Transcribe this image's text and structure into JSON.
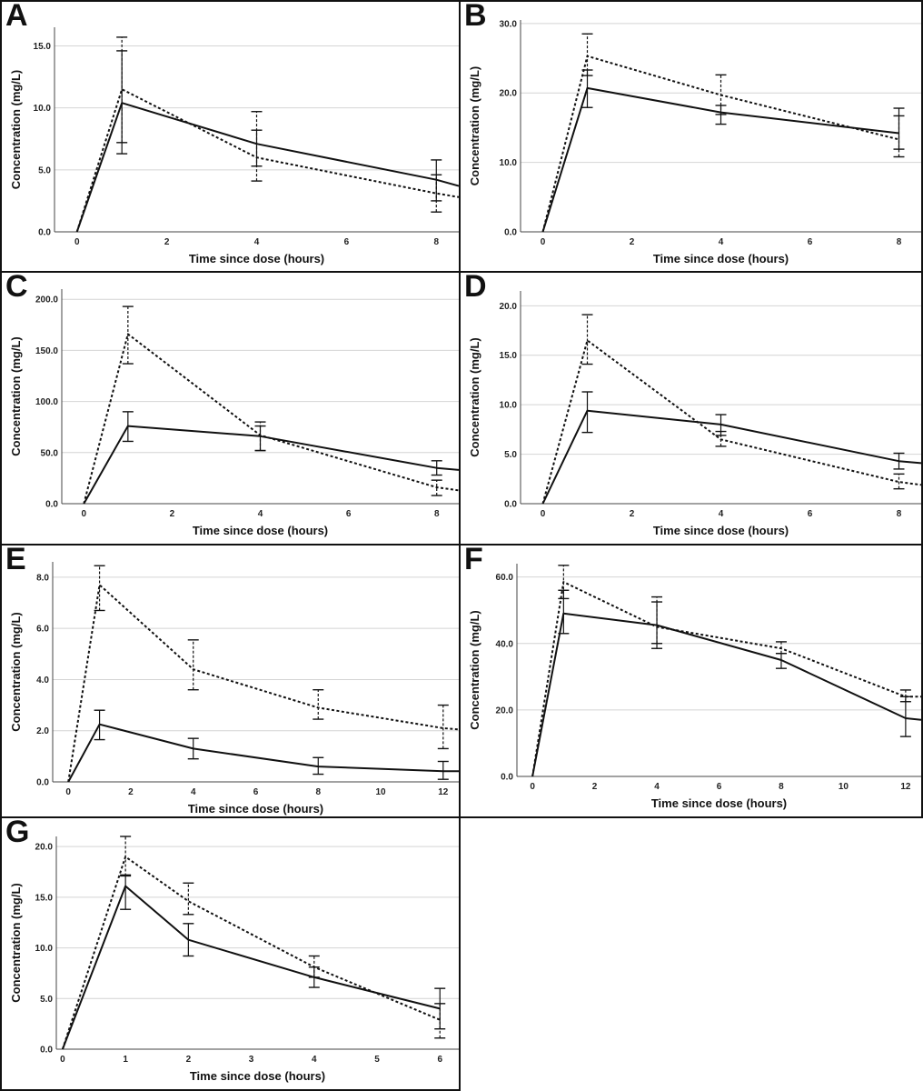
{
  "figure": {
    "legend_solid": "",
    "legend_dashed": ""
  },
  "chart_data": [
    {
      "panel": "A",
      "type": "line",
      "xlabel": "Time since dose (hours)",
      "ylabel": "Concentration (mg/L)",
      "xlim": [
        -0.5,
        8.5
      ],
      "ylim": [
        0,
        16.5
      ],
      "xticks": [
        0,
        2,
        4,
        6,
        8
      ],
      "xtick_labels": [
        "0",
        "2",
        "4",
        "6",
        "8"
      ],
      "yticks": [
        0,
        5,
        10,
        15
      ],
      "ytick_labels": [
        "0.0",
        "5.0",
        "10.0",
        "15.0"
      ],
      "series": [
        {
          "name": "solid",
          "style": "solid",
          "x": [
            0,
            1,
            4,
            8,
            8.5
          ],
          "y": [
            0,
            10.4,
            7.1,
            4.2,
            3.7
          ],
          "err_lo": [
            null,
            6.3,
            5.3,
            2.5,
            null
          ],
          "err_hi": [
            null,
            14.6,
            8.2,
            5.8,
            null
          ]
        },
        {
          "name": "dashed",
          "style": "dashed",
          "x": [
            0,
            1,
            4,
            8,
            8.5
          ],
          "y": [
            0,
            11.5,
            6.0,
            3.1,
            2.8
          ],
          "err_lo": [
            null,
            7.2,
            4.1,
            1.6,
            null
          ],
          "err_hi": [
            null,
            15.7,
            9.7,
            4.6,
            null
          ]
        }
      ]
    },
    {
      "panel": "B",
      "type": "line",
      "xlabel": "Time since dose (hours)",
      "ylabel": "Concentration (mg/L)",
      "xlim": [
        -0.5,
        8.5
      ],
      "ylim": [
        0,
        30.5
      ],
      "xticks": [
        0,
        2,
        4,
        6,
        8
      ],
      "xtick_labels": [
        "0",
        "2",
        "4",
        "6",
        "8"
      ],
      "yticks": [
        0,
        10,
        20,
        30
      ],
      "ytick_labels": [
        "0.0",
        "10.0",
        "20.0",
        "30.0"
      ],
      "series": [
        {
          "name": "solid",
          "style": "solid",
          "x": [
            0,
            1,
            4,
            8
          ],
          "y": [
            0,
            20.7,
            17.2,
            14.2
          ],
          "err_lo": [
            null,
            17.9,
            15.5,
            11.9
          ],
          "err_hi": [
            null,
            23.3,
            18.2,
            17.8
          ]
        },
        {
          "name": "dashed",
          "style": "dashed",
          "x": [
            0,
            1,
            4,
            8
          ],
          "y": [
            0,
            25.3,
            19.7,
            13.3
          ],
          "err_lo": [
            null,
            22.5,
            16.9,
            10.8
          ],
          "err_hi": [
            null,
            28.5,
            22.6,
            16.7
          ]
        }
      ]
    },
    {
      "panel": "C",
      "type": "line",
      "xlabel": "Time since dose (hours)",
      "ylabel": "Concentration (mg/L)",
      "xlim": [
        -0.5,
        8.5
      ],
      "ylim": [
        0,
        210
      ],
      "xticks": [
        0,
        2,
        4,
        6,
        8
      ],
      "xtick_labels": [
        "0",
        "2",
        "4",
        "6",
        "8"
      ],
      "yticks": [
        0,
        50,
        100,
        150,
        200
      ],
      "ytick_labels": [
        "0.0",
        "50.0",
        "100.0",
        "150.0",
        "200.0"
      ],
      "series": [
        {
          "name": "solid",
          "style": "solid",
          "x": [
            0,
            1,
            4,
            8,
            8.5
          ],
          "y": [
            0,
            76,
            66,
            35,
            33
          ],
          "err_lo": [
            null,
            61,
            52,
            28,
            null
          ],
          "err_hi": [
            null,
            90,
            76,
            42,
            null
          ]
        },
        {
          "name": "dashed",
          "style": "dashed",
          "x": [
            0,
            1,
            4,
            8,
            8.5
          ],
          "y": [
            0,
            166,
            67,
            16,
            13
          ],
          "err_lo": [
            null,
            137,
            52,
            8,
            null
          ],
          "err_hi": [
            null,
            193,
            80,
            23,
            null
          ]
        }
      ]
    },
    {
      "panel": "D",
      "type": "line",
      "xlabel": "Time since dose (hours)",
      "ylabel": "Concentration (mg/L)",
      "xlim": [
        -0.5,
        8.5
      ],
      "ylim": [
        0,
        21.5
      ],
      "xticks": [
        0,
        2,
        4,
        6,
        8
      ],
      "xtick_labels": [
        "0",
        "2",
        "4",
        "6",
        "8"
      ],
      "yticks": [
        0,
        5,
        10,
        15,
        20
      ],
      "ytick_labels": [
        "0.0",
        "5.0",
        "10.0",
        "15.0",
        "20.0"
      ],
      "series": [
        {
          "name": "solid",
          "style": "solid",
          "x": [
            0,
            1,
            4,
            8,
            8.5
          ],
          "y": [
            0,
            9.4,
            8.0,
            4.3,
            4.1
          ],
          "err_lo": [
            null,
            7.2,
            6.9,
            3.5,
            null
          ],
          "err_hi": [
            null,
            11.3,
            9.0,
            5.1,
            null
          ]
        },
        {
          "name": "dashed",
          "style": "dashed",
          "x": [
            0,
            1,
            4,
            8,
            8.5
          ],
          "y": [
            0,
            16.5,
            6.5,
            2.2,
            1.9
          ],
          "err_lo": [
            null,
            14.1,
            5.8,
            1.5,
            null
          ],
          "err_hi": [
            null,
            19.1,
            7.3,
            3.0,
            null
          ]
        }
      ]
    },
    {
      "panel": "E",
      "type": "line",
      "xlabel": "Time since dose (hours)",
      "ylabel": "Concentration (mg/L)",
      "xlim": [
        -0.5,
        12.5
      ],
      "ylim": [
        0,
        8.6
      ],
      "xticks": [
        0,
        2,
        4,
        6,
        8,
        10,
        12
      ],
      "xtick_labels": [
        "0",
        "2",
        "4",
        "6",
        "8",
        "10",
        "12"
      ],
      "yticks": [
        0,
        2,
        4,
        6,
        8
      ],
      "ytick_labels": [
        "0.0",
        "2.0",
        "4.0",
        "6.0",
        "8.0"
      ],
      "series": [
        {
          "name": "solid",
          "style": "solid",
          "x": [
            0,
            1,
            4,
            8,
            12,
            12.5
          ],
          "y": [
            0,
            2.25,
            1.3,
            0.6,
            0.42,
            0.42
          ],
          "err_lo": [
            null,
            1.65,
            0.9,
            0.3,
            0.1,
            null
          ],
          "err_hi": [
            null,
            2.8,
            1.7,
            0.95,
            0.8,
            null
          ]
        },
        {
          "name": "dashed",
          "style": "dashed",
          "x": [
            0,
            1,
            4,
            8,
            12,
            12.5
          ],
          "y": [
            0,
            7.7,
            4.4,
            2.9,
            2.1,
            2.05
          ],
          "err_lo": [
            null,
            6.7,
            3.6,
            2.45,
            1.3,
            null
          ],
          "err_hi": [
            null,
            8.45,
            5.55,
            3.6,
            3.0,
            null
          ]
        }
      ]
    },
    {
      "panel": "F",
      "type": "line",
      "xlabel": "Time since dose (hours)",
      "ylabel": "Concentration (mg/L)",
      "xlim": [
        -0.5,
        12.5
      ],
      "ylim": [
        0,
        64
      ],
      "xticks": [
        0,
        2,
        4,
        6,
        8,
        10,
        12
      ],
      "xtick_labels": [
        "0",
        "2",
        "4",
        "6",
        "8",
        "10",
        "12"
      ],
      "yticks": [
        0,
        20,
        40,
        60
      ],
      "ytick_labels": [
        "0.0",
        "20.0",
        "40.0",
        "60.0"
      ],
      "series": [
        {
          "name": "solid",
          "style": "solid",
          "x": [
            0,
            1,
            4,
            8,
            12,
            12.5
          ],
          "y": [
            0,
            49,
            45.5,
            35,
            17.5,
            17
          ],
          "err_lo": [
            null,
            43,
            38.5,
            32.5,
            12,
            null
          ],
          "err_hi": [
            null,
            56,
            52.5,
            37,
            24,
            null
          ]
        },
        {
          "name": "dashed",
          "style": "dashed",
          "x": [
            0,
            1,
            4,
            8,
            12,
            12.5
          ],
          "y": [
            0,
            58.5,
            45,
            38.5,
            24,
            24
          ],
          "err_lo": [
            null,
            53.5,
            40,
            37,
            22.5,
            null
          ],
          "err_hi": [
            null,
            63.5,
            54,
            40.5,
            26,
            null
          ]
        }
      ]
    },
    {
      "panel": "G",
      "type": "line",
      "xlabel": "Time since dose (hours)",
      "ylabel": "Concentration (mg/L)",
      "xlim": [
        -0.1,
        6.3
      ],
      "ylim": [
        0,
        21
      ],
      "xticks": [
        0,
        1,
        2,
        3,
        4,
        5,
        6
      ],
      "xtick_labels": [
        "0",
        "1",
        "2",
        "3",
        "4",
        "5",
        "6"
      ],
      "yticks": [
        0,
        5,
        10,
        15,
        20
      ],
      "ytick_labels": [
        "0.0",
        "5.0",
        "10.0",
        "15.0",
        "20.0"
      ],
      "series": [
        {
          "name": "solid",
          "style": "solid",
          "x": [
            0,
            1,
            2,
            4,
            6
          ],
          "y": [
            0,
            16.1,
            10.8,
            7.1,
            4.0
          ],
          "err_lo": [
            null,
            13.8,
            9.2,
            6.1,
            2.0
          ],
          "err_hi": [
            null,
            17.2,
            12.4,
            8.1,
            6.0
          ]
        },
        {
          "name": "dashed",
          "style": "dashed",
          "x": [
            0,
            1,
            2,
            4,
            6
          ],
          "y": [
            0,
            19.0,
            14.6,
            8.1,
            2.9
          ],
          "err_lo": [
            null,
            17.1,
            13.3,
            7.1,
            1.1
          ],
          "err_hi": [
            null,
            21.0,
            16.4,
            9.2,
            4.5
          ]
        }
      ]
    }
  ]
}
